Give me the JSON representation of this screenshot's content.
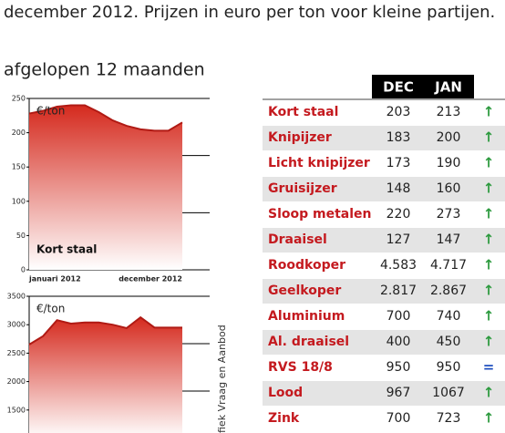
{
  "header": {
    "title": "december 2012. Prijzen in euro per ton voor kleine partijen.",
    "subtitle": "afgelopen 12 maanden"
  },
  "chart_data": [
    {
      "type": "area",
      "unit": "€/ton",
      "label": "Kort staal",
      "categories": [
        "januari 2012",
        null,
        null,
        null,
        null,
        null,
        null,
        null,
        null,
        null,
        null,
        "december 2012"
      ],
      "values": [
        228,
        232,
        238,
        240,
        240,
        230,
        218,
        210,
        205,
        203,
        203,
        215
      ],
      "color": "#d52a1e",
      "ylim": [
        0,
        250
      ],
      "yticks": [
        0,
        50,
        100,
        150,
        200,
        250
      ]
    },
    {
      "type": "area",
      "unit": "€/ton",
      "categories": [
        null,
        null,
        null,
        null,
        null,
        null,
        null,
        null,
        null,
        null,
        null,
        null
      ],
      "values": [
        2650,
        2800,
        3080,
        3020,
        3040,
        3040,
        3000,
        2940,
        3130,
        2950,
        2950,
        2950
      ],
      "color": "#d52a1e",
      "ylim": [
        1000,
        3500
      ],
      "yticks": [
        1500,
        2000,
        2500,
        3000,
        3500
      ]
    }
  ],
  "source": "fiek Vraag en Aanbod",
  "table": {
    "columns": [
      "DEC",
      "JAN"
    ],
    "rows": [
      [
        "Kort staal",
        "203",
        "213",
        "↑"
      ],
      [
        "Knipijzer",
        "183",
        "200",
        "↑"
      ],
      [
        "Licht knipijzer",
        "173",
        "190",
        "↑"
      ],
      [
        "Gruisijzer",
        "148",
        "160",
        "↑"
      ],
      [
        "Sloop metalen",
        "220",
        "273",
        "↑"
      ],
      [
        "Draaisel",
        "127",
        "147",
        "↑"
      ],
      [
        "Roodkoper",
        "4.583",
        "4.717",
        "↑"
      ],
      [
        "Geelkoper",
        "2.817",
        "2.867",
        "↑"
      ],
      [
        "Aluminium",
        "700",
        "740",
        "↑"
      ],
      [
        "Al. draaisel",
        "400",
        "450",
        "↑"
      ],
      [
        "RVS 18/8",
        "950",
        "950",
        "="
      ],
      [
        "Lood",
        "967",
        "1067",
        "↑"
      ],
      [
        "Zink",
        "700",
        "723",
        "↑"
      ]
    ]
  }
}
